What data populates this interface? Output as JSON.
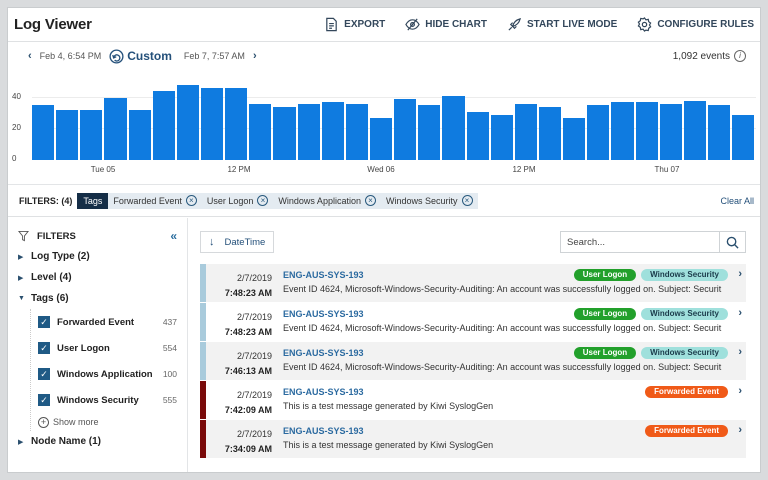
{
  "header": {
    "title": "Log Viewer",
    "buttons": [
      {
        "label": "EXPORT",
        "icon": "export-document-icon"
      },
      {
        "label": "HIDE CHART",
        "icon": "eye-slash-icon"
      },
      {
        "label": "START LIVE MODE",
        "icon": "rocket-icon"
      },
      {
        "label": "CONFIGURE RULES",
        "icon": "gear-icon"
      }
    ]
  },
  "daterange": {
    "prev": "‹",
    "from": "Feb 4, 6:54 PM",
    "preset": "Custom",
    "to": "Feb 7, 7:57 AM",
    "next": "›",
    "event_count": "1,092 events",
    "info": "i"
  },
  "chart_data": {
    "type": "bar",
    "title": "",
    "xlabel": "",
    "ylabel": "",
    "ylim": [
      0,
      50
    ],
    "yticks": [
      "0",
      "20",
      "40"
    ],
    "xtick_labels": [
      "Tue 05",
      "12 PM",
      "Wed 06",
      "12 PM",
      "Thu 07"
    ],
    "values": [
      35,
      32,
      32,
      40,
      32,
      44,
      48,
      46,
      46,
      36,
      34,
      36,
      37,
      36,
      27,
      39,
      35,
      41,
      31,
      29,
      36,
      34,
      27,
      35,
      37,
      37,
      36,
      38,
      35,
      29
    ],
    "color": "#0f7be0",
    "grid": true
  },
  "filters": {
    "label": "FILTERS: (4)",
    "group": "Tags",
    "chips": [
      "Forwarded Event",
      "User Logon",
      "Windows Application",
      "Windows Security"
    ],
    "remove": "×",
    "clear_all": "Clear All"
  },
  "sidebar": {
    "title": "FILTERS",
    "collapse": "«",
    "groups": {
      "log_type": "Log Type (2)",
      "level": "Level (4)",
      "tags": "Tags (6)",
      "node_name": "Node Name (1)"
    },
    "tags": [
      {
        "label": "Forwarded Event",
        "count": "437"
      },
      {
        "label": "User Logon",
        "count": "554"
      },
      {
        "label": "Windows Application",
        "count": "100"
      },
      {
        "label": "Windows Security",
        "count": "555"
      }
    ],
    "show_more": "Show more",
    "check": "✓"
  },
  "list": {
    "sort_label": "DateTime",
    "sort_arrow": "↓",
    "search_placeholder": "Search...",
    "rows": [
      {
        "date": "2/7/2019",
        "time": "7:48:23 AM",
        "host": "ENG-AUS-SYS-193",
        "message": "Event ID 4624, Microsoft-Windows-Security-Auditing: An account was successfully logged on. Subject: Securit",
        "badges": [
          "User Logon",
          "Windows Security"
        ],
        "severity_color": "#a9cbdc"
      },
      {
        "date": "2/7/2019",
        "time": "7:48:23 AM",
        "host": "ENG-AUS-SYS-193",
        "message": "Event ID 4624, Microsoft-Windows-Security-Auditing: An account was successfully logged on. Subject: Securit",
        "badges": [
          "User Logon",
          "Windows Security"
        ],
        "severity_color": "#a9cbdc"
      },
      {
        "date": "2/7/2019",
        "time": "7:46:13 AM",
        "host": "ENG-AUS-SYS-193",
        "message": "Event ID 4624, Microsoft-Windows-Security-Auditing: An account was successfully logged on. Subject: Securit",
        "badges": [
          "User Logon",
          "Windows Security"
        ],
        "severity_color": "#a9cbdc"
      },
      {
        "date": "2/7/2019",
        "time": "7:42:09 AM",
        "host": "ENG-AUS-SYS-193",
        "message": "This is a test message generated by Kiwi SyslogGen",
        "badges": [
          "Forwarded Event"
        ],
        "severity_color": "#7a0a0a"
      },
      {
        "date": "2/7/2019",
        "time": "7:34:09 AM",
        "host": "ENG-AUS-SYS-193",
        "message": "This is a test message generated by Kiwi SyslogGen",
        "badges": [
          "Forwarded Event"
        ],
        "severity_color": "#7a0a0a"
      }
    ],
    "row_chevron": "›"
  }
}
